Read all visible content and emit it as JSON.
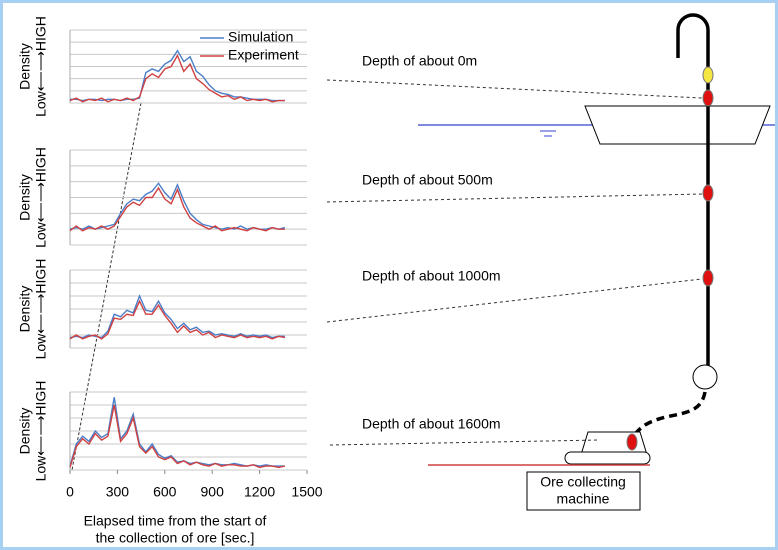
{
  "chart_data": [
    {
      "type": "line",
      "y_label": [
        "Density",
        "Low⟵⟶HIGH"
      ],
      "legend": "upper right",
      "xlim": [
        0,
        1500
      ],
      "ylim": [
        0,
        6
      ],
      "yticks": [
        0,
        1,
        2,
        3,
        4,
        5,
        6
      ],
      "grid": true,
      "x": [
        0,
        40,
        80,
        120,
        160,
        200,
        240,
        280,
        320,
        360,
        400,
        440,
        480,
        520,
        560,
        600,
        640,
        680,
        720,
        760,
        800,
        840,
        880,
        920,
        960,
        1000,
        1040,
        1080,
        1120,
        1160,
        1200,
        1240,
        1280,
        1320,
        1360
      ],
      "series": [
        {
          "name": "Simulation",
          "color": "#4a7ec8",
          "values": [
            0.3,
            0.3,
            0.2,
            0.3,
            0.3,
            0.2,
            0.3,
            0.3,
            0.2,
            0.3,
            0.3,
            0.4,
            2.5,
            2.8,
            2.6,
            3.2,
            3.5,
            4.3,
            3.4,
            3.8,
            2.6,
            2.2,
            1.5,
            1.0,
            0.8,
            0.7,
            0.5,
            0.5,
            0.4,
            0.3,
            0.3,
            0.3,
            0.2,
            0.2,
            0.2
          ]
        },
        {
          "name": "Experiment",
          "color": "#d04040",
          "values": [
            0.2,
            0.4,
            0.1,
            0.3,
            0.2,
            0.4,
            0.1,
            0.3,
            0.2,
            0.4,
            0.2,
            0.5,
            2.0,
            2.4,
            2.1,
            2.8,
            3.0,
            3.9,
            2.6,
            3.2,
            2.0,
            1.6,
            1.1,
            0.8,
            0.5,
            0.6,
            0.3,
            0.5,
            0.2,
            0.3,
            0.2,
            0.3,
            0.1,
            0.2,
            0.2
          ]
        }
      ]
    },
    {
      "type": "line",
      "y_label": [
        "Density",
        "Low⟵⟶HIGH"
      ],
      "xlim": [
        0,
        1500
      ],
      "ylim": [
        0,
        6
      ],
      "yticks": [
        0,
        1,
        2,
        3,
        4,
        5,
        6
      ],
      "grid": true,
      "x": [
        0,
        40,
        80,
        120,
        160,
        200,
        240,
        280,
        320,
        360,
        400,
        440,
        480,
        520,
        560,
        600,
        640,
        680,
        720,
        760,
        800,
        840,
        880,
        920,
        960,
        1000,
        1040,
        1080,
        1120,
        1160,
        1200,
        1240,
        1280,
        1320,
        1360
      ],
      "series": [
        {
          "color": "#4a7ec8",
          "values": [
            1.0,
            1.1,
            1.0,
            1.2,
            1.0,
            1.1,
            1.2,
            1.3,
            2.0,
            2.6,
            2.9,
            2.8,
            3.2,
            3.4,
            3.9,
            3.3,
            2.9,
            3.8,
            2.8,
            2.0,
            1.6,
            1.3,
            1.2,
            1.1,
            1.0,
            1.1,
            1.0,
            1.2,
            1.0,
            1.1,
            1.0,
            1.0,
            1.1,
            1.0,
            1.1
          ]
        },
        {
          "color": "#d04040",
          "values": [
            0.9,
            1.2,
            0.9,
            1.1,
            1.0,
            1.2,
            1.0,
            1.2,
            1.8,
            2.4,
            2.7,
            2.5,
            3.0,
            3.0,
            3.6,
            2.9,
            2.6,
            3.5,
            2.4,
            1.7,
            1.4,
            1.2,
            1.0,
            1.2,
            0.9,
            1.0,
            1.1,
            1.0,
            0.9,
            1.1,
            1.0,
            0.9,
            1.1,
            1.0,
            1.0
          ]
        }
      ]
    },
    {
      "type": "line",
      "y_label": [
        "Density",
        "Low⟵⟶HIGH"
      ],
      "xlim": [
        0,
        1500
      ],
      "ylim": [
        0,
        6
      ],
      "yticks": [
        0,
        1,
        2,
        3,
        4,
        5,
        6
      ],
      "grid": true,
      "x": [
        0,
        40,
        80,
        120,
        160,
        200,
        240,
        280,
        320,
        360,
        400,
        440,
        480,
        520,
        560,
        600,
        640,
        680,
        720,
        760,
        800,
        840,
        880,
        920,
        960,
        1000,
        1040,
        1080,
        1120,
        1160,
        1200,
        1240,
        1280,
        1320,
        1360
      ],
      "series": [
        {
          "color": "#4a7ec8",
          "values": [
            0.8,
            0.9,
            0.8,
            1.0,
            0.9,
            0.8,
            1.3,
            2.6,
            2.4,
            2.9,
            2.7,
            4.0,
            2.9,
            2.8,
            3.6,
            2.7,
            2.2,
            1.5,
            1.9,
            1.4,
            1.6,
            1.2,
            1.3,
            1.0,
            1.1,
            1.0,
            0.9,
            1.1,
            0.9,
            1.0,
            0.9,
            1.0,
            0.8,
            0.9,
            0.9
          ]
        },
        {
          "color": "#d04040",
          "values": [
            0.7,
            1.0,
            0.7,
            0.9,
            1.0,
            0.7,
            1.1,
            2.3,
            2.2,
            2.6,
            2.5,
            3.6,
            2.6,
            2.6,
            3.3,
            2.5,
            1.9,
            1.2,
            1.7,
            1.2,
            1.4,
            1.0,
            1.2,
            0.8,
            1.0,
            0.9,
            0.8,
            1.0,
            0.8,
            0.9,
            0.8,
            0.9,
            0.7,
            0.9,
            0.8
          ]
        }
      ]
    },
    {
      "type": "line",
      "y_label": [
        "Density",
        "Low⟵⟶HIGH"
      ],
      "x_label": [
        "Elapsed time from the start of",
        "the collection of ore [sec.]"
      ],
      "xlim": [
        0,
        1500
      ],
      "ylim": [
        0,
        6
      ],
      "yticks": [
        0,
        1,
        2,
        3,
        4,
        5,
        6
      ],
      "grid": true,
      "xticks": [
        0,
        300,
        600,
        900,
        1200,
        1500
      ],
      "x": [
        0,
        40,
        80,
        120,
        160,
        200,
        240,
        280,
        320,
        360,
        400,
        440,
        480,
        520,
        560,
        600,
        640,
        680,
        720,
        760,
        800,
        840,
        880,
        920,
        960,
        1000,
        1040,
        1080,
        1120,
        1160,
        1200,
        1240,
        1280,
        1320,
        1360
      ],
      "series": [
        {
          "color": "#4a7ec8",
          "values": [
            0.3,
            2.0,
            2.6,
            2.2,
            3.0,
            2.5,
            2.8,
            5.6,
            2.4,
            3.0,
            4.3,
            2.0,
            1.4,
            2.0,
            1.2,
            0.9,
            1.1,
            0.6,
            0.7,
            0.5,
            0.6,
            0.5,
            0.4,
            0.5,
            0.4,
            0.4,
            0.5,
            0.4,
            0.3,
            0.4,
            0.3,
            0.4,
            0.3,
            0.3,
            0.3
          ]
        },
        {
          "color": "#d04040",
          "values": [
            0.2,
            1.8,
            2.4,
            2.0,
            2.8,
            2.3,
            2.6,
            5.0,
            2.2,
            2.8,
            4.0,
            1.8,
            1.3,
            1.8,
            1.0,
            0.8,
            1.0,
            0.5,
            0.7,
            0.4,
            0.6,
            0.4,
            0.3,
            0.5,
            0.3,
            0.4,
            0.4,
            0.3,
            0.3,
            0.4,
            0.2,
            0.3,
            0.3,
            0.2,
            0.3
          ]
        }
      ]
    }
  ],
  "diagram": {
    "depth_labels": [
      "Depth of about 0m",
      "Depth of about 500m",
      "Depth of about 1000m",
      "Depth of about 1600m"
    ],
    "machine_label": [
      "Ore collecting",
      "machine"
    ]
  }
}
